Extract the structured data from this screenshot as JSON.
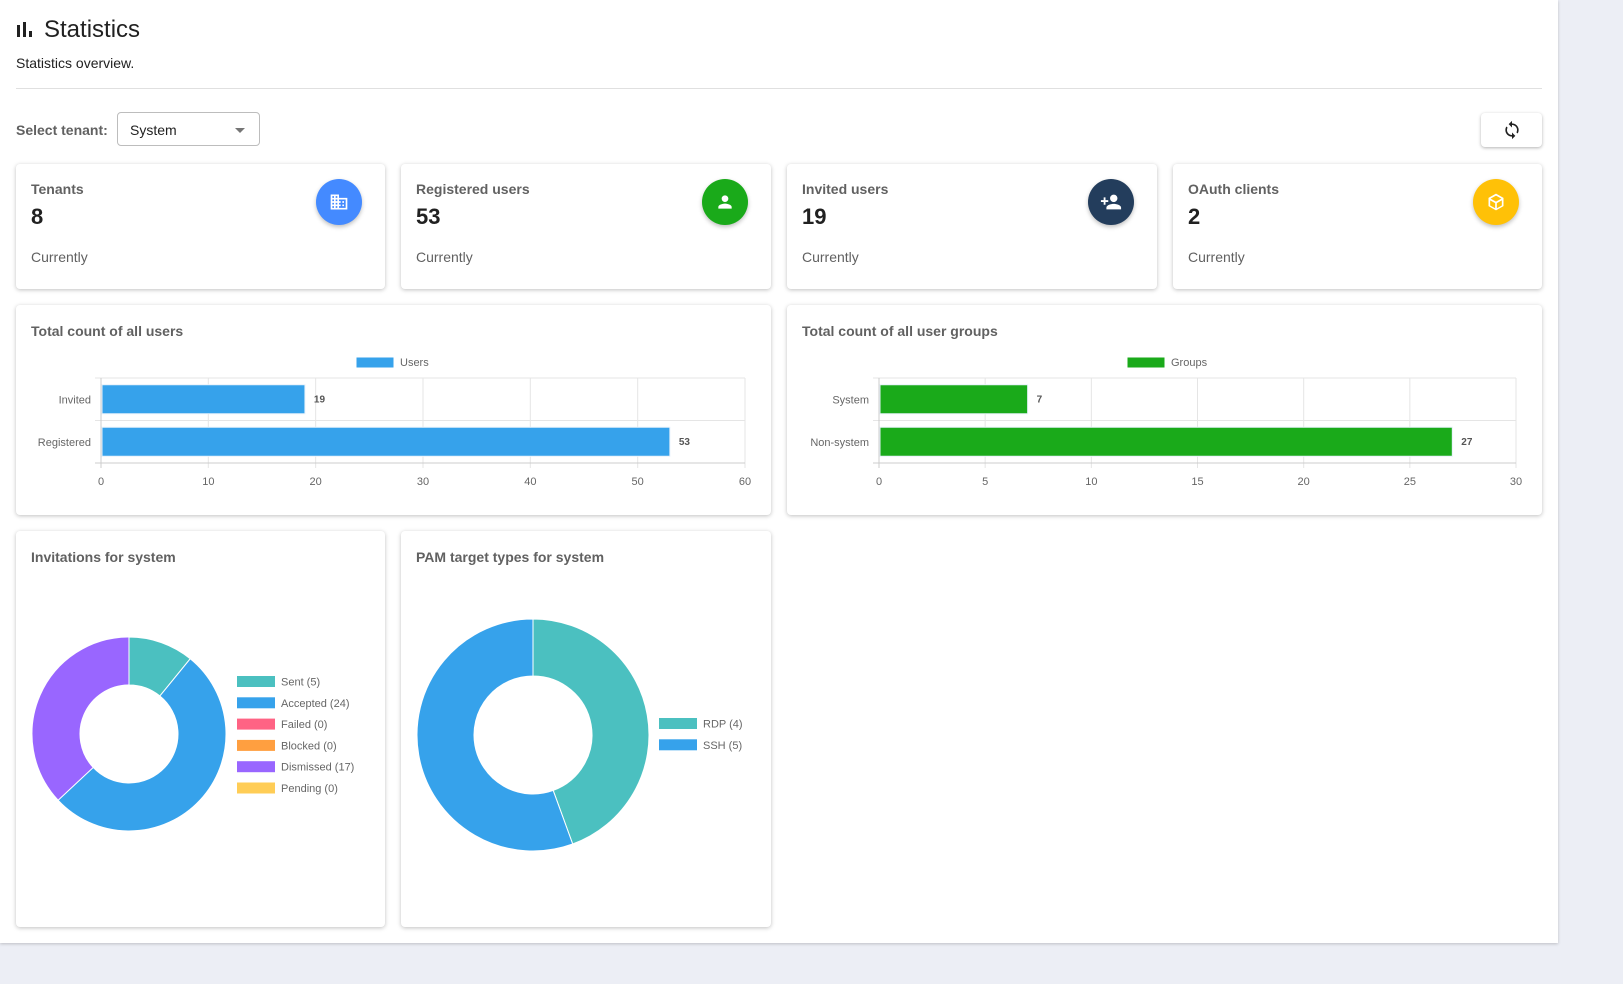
{
  "header": {
    "title": "Statistics",
    "subtitle": "Statistics overview.",
    "icon": "bar-chart-icon"
  },
  "tenant": {
    "label": "Select tenant:",
    "selected": "System"
  },
  "refresh_icon": "refresh-icon",
  "stats": [
    {
      "label": "Tenants",
      "value": "8",
      "note": "Currently",
      "icon": "building-icon",
      "color": "#448aff"
    },
    {
      "label": "Registered users",
      "value": "53",
      "note": "Currently",
      "icon": "person-icon",
      "color": "#1aaa1a"
    },
    {
      "label": "Invited users",
      "value": "19",
      "note": "Currently",
      "icon": "person-add-icon",
      "color": "#233d5c"
    },
    {
      "label": "OAuth clients",
      "value": "2",
      "note": "Currently",
      "icon": "cube-icon",
      "color": "#ffc107"
    }
  ],
  "chart_data": [
    {
      "type": "bar",
      "orientation": "horizontal",
      "title": "Total count of all users",
      "categories": [
        "Invited",
        "Registered"
      ],
      "series": [
        {
          "name": "Users",
          "values": [
            19,
            53
          ],
          "color": "#36a2eb"
        }
      ],
      "xlim": [
        0,
        60
      ],
      "xticks": [
        0,
        10,
        20,
        30,
        40,
        50,
        60
      ],
      "grid": true,
      "legend": "top"
    },
    {
      "type": "bar",
      "orientation": "horizontal",
      "title": "Total count of all user groups",
      "categories": [
        "System",
        "Non-system"
      ],
      "series": [
        {
          "name": "Groups",
          "values": [
            7,
            27
          ],
          "color": "#1aaa1a"
        }
      ],
      "xlim": [
        0,
        30
      ],
      "xticks": [
        0,
        5,
        10,
        15,
        20,
        25,
        30
      ],
      "grid": true,
      "legend": "top"
    },
    {
      "type": "pie",
      "donut": true,
      "title": "Invitations for system",
      "labels": [
        "Sent (5)",
        "Accepted (24)",
        "Failed (0)",
        "Blocked (0)",
        "Dismissed (17)",
        "Pending (0)"
      ],
      "values": [
        5,
        24,
        0,
        0,
        17,
        0
      ],
      "colors": [
        "#4bc0c0",
        "#36a2eb",
        "#ff6384",
        "#ff9f40",
        "#9966ff",
        "#ffcd56"
      ],
      "legend": "right"
    },
    {
      "type": "pie",
      "donut": true,
      "title": "PAM target types for system",
      "labels": [
        "RDP (4)",
        "SSH (5)"
      ],
      "values": [
        4,
        5
      ],
      "colors": [
        "#4bc0c0",
        "#36a2eb"
      ],
      "legend": "right"
    }
  ]
}
